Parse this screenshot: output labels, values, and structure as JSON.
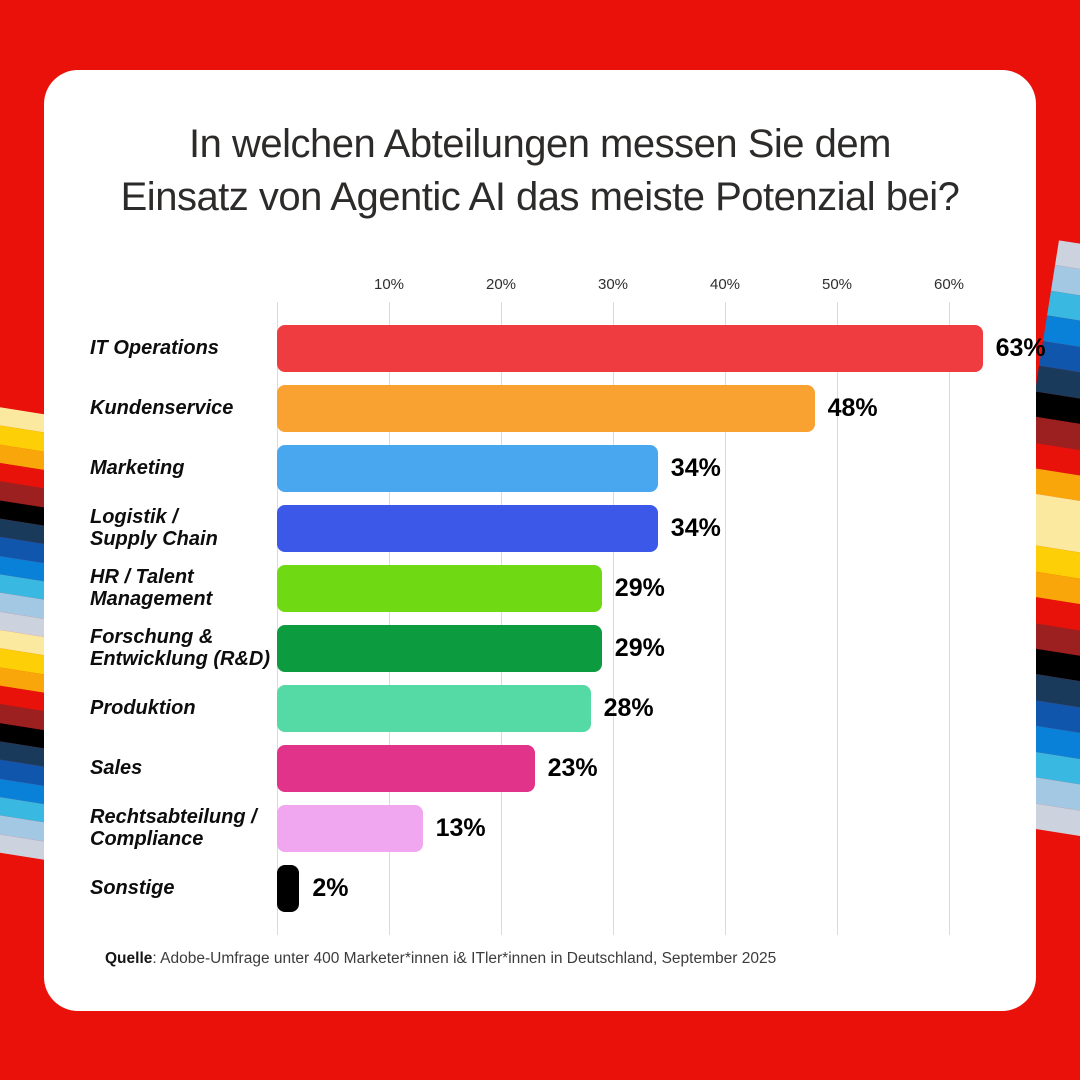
{
  "background_color": "#e9110a",
  "card_color": "#ffffff",
  "chart_data": {
    "type": "bar",
    "orientation": "horizontal",
    "title": "In welchen Abteilungen messen Sie dem Einsatz von Agentic AI das meiste Potenzial bei?",
    "title_lines": [
      "In welchen Abteilungen messen Sie dem",
      "Einsatz von Agentic AI das meiste Potenzial bei?"
    ],
    "categories": [
      "IT Operations",
      "Kundenservice",
      "Marketing",
      "Logistik / Supply Chain",
      "HR / Talent Management",
      "Forschung & Entwicklung (R&D)",
      "Produktion",
      "Sales",
      "Rechtsabteilung / Compliance",
      "Sonstige"
    ],
    "values": [
      63,
      48,
      34,
      34,
      29,
      29,
      28,
      23,
      13,
      2
    ],
    "axis_ticks": [
      "10%",
      "20%",
      "30%",
      "40%",
      "50%",
      "60%"
    ],
    "xlim": [
      0,
      66
    ],
    "grid": true,
    "legend": "none",
    "rows": [
      {
        "label_lines": [
          "IT Operations"
        ],
        "value": 63,
        "value_label": "63%",
        "color": "#ee3c41"
      },
      {
        "label_lines": [
          "Kundenservice"
        ],
        "value": 48,
        "value_label": "48%",
        "color": "#f9a131"
      },
      {
        "label_lines": [
          "Marketing"
        ],
        "value": 34,
        "value_label": "34%",
        "color": "#48a7ef"
      },
      {
        "label_lines": [
          "Logistik /",
          "Supply Chain"
        ],
        "value": 34,
        "value_label": "34%",
        "color": "#3c58e9"
      },
      {
        "label_lines": [
          "HR / Talent",
          "Management"
        ],
        "value": 29,
        "value_label": "29%",
        "color": "#6fd914"
      },
      {
        "label_lines": [
          "Forschung &",
          "Entwicklung (R&D)"
        ],
        "value": 29,
        "value_label": "29%",
        "color": "#0d9b3f"
      },
      {
        "label_lines": [
          "Produktion"
        ],
        "value": 28,
        "value_label": "28%",
        "color": "#55d9a5"
      },
      {
        "label_lines": [
          "Sales"
        ],
        "value": 23,
        "value_label": "23%",
        "color": "#e13389"
      },
      {
        "label_lines": [
          "Rechtsabteilung /",
          "Compliance"
        ],
        "value": 13,
        "value_label": "13%",
        "color": "#f0a7f0"
      },
      {
        "label_lines": [
          "Sonstige"
        ],
        "value": 2,
        "value_label": "2%",
        "color": "#000000"
      }
    ]
  },
  "source": {
    "bold": "Quelle",
    "rest": ": Adobe-Umfrage unter 400 Marketer*innen i& ITler*innen in Deutschland, September 2025"
  },
  "decoration": {
    "left_stripes": [
      {
        "c": "#fce9a0",
        "w": 1
      },
      {
        "c": "#fccf06",
        "w": 1
      },
      {
        "c": "#f9a60a",
        "w": 1
      },
      {
        "c": "#e8120b",
        "w": 1
      },
      {
        "c": "#9c2020",
        "w": 1
      },
      {
        "c": "#000000",
        "w": 1
      },
      {
        "c": "#1a3a5c",
        "w": 1
      },
      {
        "c": "#1056ac",
        "w": 1
      },
      {
        "c": "#0981d8",
        "w": 1
      },
      {
        "c": "#39b9e2",
        "w": 1
      },
      {
        "c": "#a3c8e4",
        "w": 1
      },
      {
        "c": "#ccd3de",
        "w": 1
      },
      {
        "c": "#fce9a0",
        "w": 1
      },
      {
        "c": "#fccf06",
        "w": 1
      },
      {
        "c": "#f9a60a",
        "w": 1
      },
      {
        "c": "#e8120b",
        "w": 1
      },
      {
        "c": "#9c2020",
        "w": 1
      },
      {
        "c": "#000000",
        "w": 1
      },
      {
        "c": "#1a3a5c",
        "w": 1
      },
      {
        "c": "#1056ac",
        "w": 1
      },
      {
        "c": "#0981d8",
        "w": 1
      },
      {
        "c": "#39b9e2",
        "w": 1
      },
      {
        "c": "#a3c8e4",
        "w": 1
      },
      {
        "c": "#ccd3de",
        "w": 1
      }
    ],
    "right_stripes": [
      {
        "c": "#ccd3de",
        "w": 1
      },
      {
        "c": "#a3c8e4",
        "w": 1
      },
      {
        "c": "#39b9e2",
        "w": 1
      },
      {
        "c": "#0981d8",
        "w": 1
      },
      {
        "c": "#1056ac",
        "w": 1
      },
      {
        "c": "#1a3a5c",
        "w": 1
      },
      {
        "c": "#000000",
        "w": 1
      },
      {
        "c": "#9c2020",
        "w": 1
      },
      {
        "c": "#e8120b",
        "w": 1
      },
      {
        "c": "#f9a60a",
        "w": 1
      },
      {
        "c": "#fce9a0",
        "w": 2
      },
      {
        "c": "#fccf06",
        "w": 1
      },
      {
        "c": "#f9a60a",
        "w": 1
      },
      {
        "c": "#e8120b",
        "w": 1
      },
      {
        "c": "#9c2020",
        "w": 1
      },
      {
        "c": "#000000",
        "w": 1
      },
      {
        "c": "#1a3a5c",
        "w": 1
      },
      {
        "c": "#1056ac",
        "w": 1
      },
      {
        "c": "#0981d8",
        "w": 1
      },
      {
        "c": "#39b9e2",
        "w": 1
      },
      {
        "c": "#a3c8e4",
        "w": 1
      },
      {
        "c": "#ccd3de",
        "w": 1
      }
    ]
  }
}
